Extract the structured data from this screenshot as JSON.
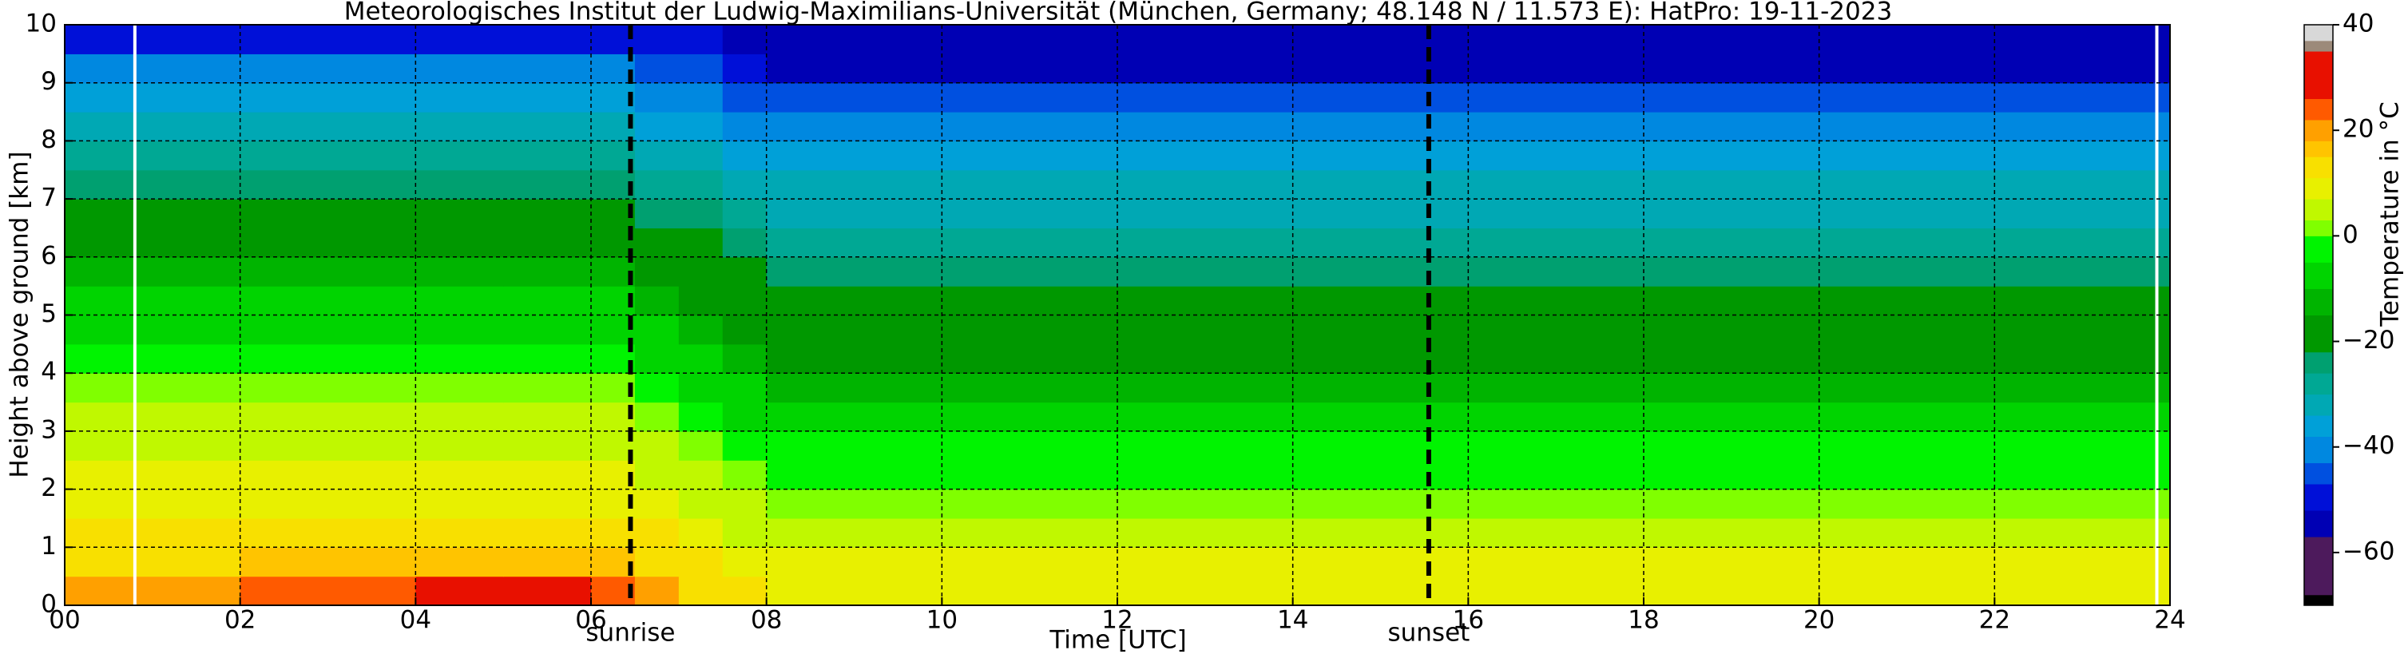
{
  "chart_data": {
    "type": "heatmap",
    "title": "Meteorologisches Institut der Ludwig-Maximilians-Universität (München, Germany; 48.148 N / 11.573 E):    HatPro: 19-11-2023",
    "xlabel": "Time [UTC]",
    "ylabel": "Height above ground [km]",
    "xlim": [
      0,
      24
    ],
    "ylim": [
      0,
      10
    ],
    "xticks": [
      {
        "value": 0,
        "label": "00"
      },
      {
        "value": 2,
        "label": "02"
      },
      {
        "value": 4,
        "label": "04"
      },
      {
        "value": 6,
        "label": "06"
      },
      {
        "value": 8,
        "label": "08"
      },
      10,
      12,
      14,
      16,
      18,
      20,
      22,
      24
    ],
    "yticks": [
      0,
      1,
      2,
      3,
      4,
      5,
      6,
      7,
      8,
      9,
      10
    ],
    "grid": true,
    "xbins": [
      0,
      2,
      4,
      5,
      6,
      6.5,
      7,
      7.5,
      8,
      10,
      12,
      14,
      16,
      18,
      20,
      22,
      24
    ],
    "ybins": [
      0,
      0.5,
      1,
      1.5,
      2,
      2.5,
      3,
      3.5,
      4,
      4.5,
      5,
      5.5,
      6,
      6.5,
      7,
      7.5,
      8,
      8.5,
      9,
      9.5,
      10
    ],
    "z": [
      [
        19,
        24,
        28,
        28,
        24,
        18,
        14,
        12,
        10,
        10,
        10,
        10,
        10,
        10,
        10,
        10
      ],
      [
        14,
        16,
        17,
        17,
        16,
        13,
        11,
        9,
        7,
        7,
        7,
        7,
        7,
        7,
        7,
        7
      ],
      [
        13,
        13,
        13,
        13,
        13,
        11,
        8,
        6,
        4,
        4,
        4,
        4,
        4,
        4,
        4,
        4
      ],
      [
        10,
        10,
        10,
        10,
        10,
        8,
        6,
        4,
        2,
        2,
        2,
        2,
        2,
        2,
        2,
        2
      ],
      [
        8,
        8,
        8,
        8,
        8,
        5,
        3,
        0,
        -2,
        -2,
        -2,
        -2,
        -2,
        -2,
        -2,
        -2
      ],
      [
        6,
        6,
        6,
        6,
        6,
        3,
        0,
        -2,
        -5,
        -5,
        -5,
        -5,
        -5,
        -5,
        -5,
        -5
      ],
      [
        3,
        3,
        3,
        3,
        3,
        0,
        -3,
        -6,
        -9,
        -9,
        -9,
        -9,
        -9,
        -9,
        -9,
        -9
      ],
      [
        0,
        0,
        0,
        0,
        0,
        -3,
        -7,
        -10,
        -13,
        -13,
        -13,
        -13,
        -13,
        -13,
        -13,
        -13
      ],
      [
        -3,
        -3,
        -3,
        -3,
        -3,
        -7,
        -10,
        -14,
        -17,
        -17,
        -17,
        -17,
        -17,
        -17,
        -17,
        -17
      ],
      [
        -6,
        -6,
        -6,
        -6,
        -6,
        -9,
        -13,
        -16,
        -19,
        -19,
        -19,
        -19,
        -19,
        -19,
        -19,
        -19
      ],
      [
        -10,
        -10,
        -10,
        -10,
        -10,
        -13,
        -16,
        -19,
        -22,
        -22,
        -22,
        -22,
        -22,
        -22,
        -22,
        -22
      ],
      [
        -13,
        -13,
        -13,
        -13,
        -13,
        -16,
        -19,
        -22,
        -25,
        -25,
        -25,
        -25,
        -25,
        -25,
        -25,
        -25
      ],
      [
        -17,
        -17,
        -17,
        -17,
        -17,
        -20,
        -22,
        -25,
        -28,
        -28,
        -28,
        -28,
        -28,
        -28,
        -28,
        -28
      ],
      [
        -21,
        -21,
        -21,
        -21,
        -21,
        -23,
        -26,
        -28,
        -31,
        -31,
        -31,
        -31,
        -31,
        -31,
        -31,
        -31
      ],
      [
        -25,
        -25,
        -25,
        -25,
        -25,
        -27,
        -29,
        -32,
        -34,
        -34,
        -34,
        -34,
        -34,
        -34,
        -34,
        -34
      ],
      [
        -29,
        -29,
        -29,
        -29,
        -29,
        -31,
        -33,
        -36,
        -38,
        -38,
        -38,
        -38,
        -38,
        -38,
        -38,
        -38
      ],
      [
        -33,
        -33,
        -33,
        -33,
        -33,
        -35,
        -37,
        -40,
        -42,
        -42,
        -42,
        -42,
        -42,
        -42,
        -42,
        -42
      ],
      [
        -37,
        -37,
        -37,
        -37,
        -37,
        -40,
        -42,
        -45,
        -47,
        -47,
        -47,
        -47,
        -47,
        -47,
        -47,
        -47
      ],
      [
        -42,
        -42,
        -42,
        -42,
        -42,
        -45,
        -47,
        -50,
        -53,
        -53,
        -53,
        -53,
        -53,
        -53,
        -53,
        -53
      ],
      [
        -48,
        -48,
        -48,
        -48,
        -48,
        -50,
        -52,
        -54,
        -55,
        -55,
        -55,
        -55,
        -55,
        -55,
        -55,
        -55
      ]
    ],
    "gaps": [
      0.8,
      23.85
    ],
    "vlines": [
      {
        "x": 6.45,
        "label": "sunrise"
      },
      {
        "x": 15.55,
        "label": "sunset"
      }
    ],
    "colorbar": {
      "label": "Temperature in $^\\circ$C",
      "lim": [
        -70,
        40
      ],
      "ticks": [
        {
          "value": -60,
          "label": "−60"
        },
        {
          "value": -40,
          "label": "−40"
        },
        {
          "value": -20,
          "label": "−20"
        },
        0,
        20,
        40
      ],
      "levels": [
        -70,
        -68,
        -57,
        -52,
        -47,
        -43,
        -38,
        -34,
        -30,
        -26,
        -22,
        -15,
        -10,
        -5,
        0,
        3,
        7,
        11,
        15,
        18,
        22,
        26,
        35,
        37,
        40
      ],
      "colors": [
        "#000000",
        "#4d1a5c",
        "#0000b4",
        "#0010d8",
        "#0050e0",
        "#0088e0",
        "#00a0d8",
        "#00a8b4",
        "#00a894",
        "#00a070",
        "#009800",
        "#00b400",
        "#00d400",
        "#00f400",
        "#80ff00",
        "#c0f800",
        "#e8f000",
        "#f8e000",
        "#ffc400",
        "#ffa000",
        "#ff5a00",
        "#e81000",
        "#9c8a7a",
        "#d8d8d8"
      ]
    }
  }
}
